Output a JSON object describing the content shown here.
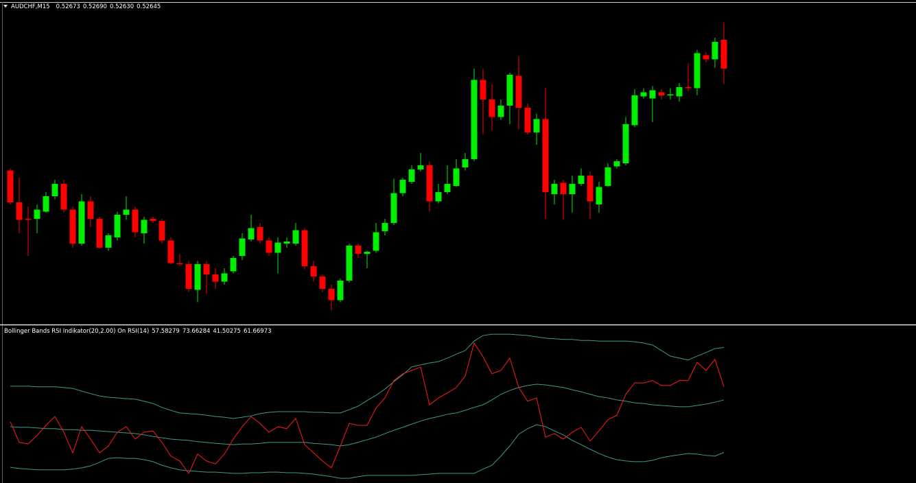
{
  "chart_data": [
    {
      "type": "candlestick",
      "title": "AUDCHF,M15",
      "ohlc_labels": [
        "0.52673",
        "0.52690",
        "0.52630",
        "0.52645"
      ],
      "up_color": "#00ee00",
      "down_color": "#ff0000",
      "ylim": [
        0.52397,
        0.52709
      ],
      "open": [
        0.52546,
        0.52515,
        0.52499,
        0.52499,
        0.52506,
        0.52521,
        0.52533,
        0.52508,
        0.52475,
        0.52516,
        0.52499,
        0.52471,
        0.52481,
        0.52503,
        0.52508,
        0.52485,
        0.52499,
        0.52497,
        0.52478,
        0.52456,
        0.52455,
        0.5243,
        0.52455,
        0.52445,
        0.52438,
        0.52448,
        0.52463,
        0.52479,
        0.52491,
        0.52478,
        0.52466,
        0.52475,
        0.52475,
        0.52488,
        0.52453,
        0.52443,
        0.52431,
        0.5242,
        0.52439,
        0.52473,
        0.52465,
        0.52468,
        0.52487,
        0.52495,
        0.52524,
        0.52535,
        0.52547,
        0.52551,
        0.52516,
        0.52525,
        0.52531,
        0.52549,
        0.52557,
        0.52634,
        0.52615,
        0.52598,
        0.52609,
        0.52638,
        0.52607,
        0.52583,
        0.52596,
        0.52523,
        0.52534,
        0.52523,
        0.52533,
        0.52541,
        0.52513,
        0.52531,
        0.5255,
        0.52553,
        0.5259,
        0.52618,
        0.52616,
        0.52622,
        0.52619,
        0.52618,
        0.52627,
        0.52626,
        0.52658,
        0.52654,
        0.52673
      ],
      "high": [
        0.52548,
        0.52539,
        0.52511,
        0.52513,
        0.52525,
        0.52537,
        0.52537,
        0.52511,
        0.52523,
        0.52521,
        0.52501,
        0.52485,
        0.52506,
        0.52521,
        0.52511,
        0.52501,
        0.52501,
        0.52499,
        0.52481,
        0.52465,
        0.52458,
        0.52458,
        0.52458,
        0.52451,
        0.52451,
        0.52463,
        0.52485,
        0.52503,
        0.52495,
        0.52481,
        0.52481,
        0.52481,
        0.52495,
        0.5249,
        0.52458,
        0.52445,
        0.52435,
        0.52441,
        0.52475,
        0.52475,
        0.52468,
        0.52495,
        0.52499,
        0.52538,
        0.52539,
        0.52551,
        0.52563,
        0.52555,
        0.52533,
        0.52551,
        0.52557,
        0.52563,
        0.52645,
        0.52645,
        0.5263,
        0.52615,
        0.52641,
        0.52657,
        0.52611,
        0.52601,
        0.52626,
        0.52537,
        0.52537,
        0.52541,
        0.52548,
        0.52545,
        0.52535,
        0.52553,
        0.52557,
        0.52598,
        0.52625,
        0.52626,
        0.52628,
        0.52625,
        0.52626,
        0.52631,
        0.5265,
        0.52663,
        0.52661,
        0.52675,
        0.5269
      ],
      "low": [
        0.52513,
        0.52485,
        0.52463,
        0.52485,
        0.52505,
        0.52518,
        0.52505,
        0.52471,
        0.52473,
        0.52491,
        0.5247,
        0.52468,
        0.52478,
        0.52498,
        0.52481,
        0.52475,
        0.52495,
        0.52475,
        0.52455,
        0.52453,
        0.52428,
        0.52418,
        0.52426,
        0.52431,
        0.52435,
        0.52446,
        0.52459,
        0.52477,
        0.52475,
        0.52463,
        0.52446,
        0.52471,
        0.52473,
        0.5245,
        0.52438,
        0.52428,
        0.5241,
        0.52418,
        0.52437,
        0.52461,
        0.52451,
        0.52466,
        0.52483,
        0.52493,
        0.52521,
        0.52533,
        0.52545,
        0.52506,
        0.52514,
        0.52523,
        0.5253,
        0.52546,
        0.52555,
        0.52581,
        0.52585,
        0.52595,
        0.52591,
        0.52586,
        0.52581,
        0.52571,
        0.52499,
        0.52513,
        0.52498,
        0.52505,
        0.52531,
        0.52499,
        0.52505,
        0.5253,
        0.52548,
        0.52551,
        0.52588,
        0.52616,
        0.52593,
        0.52615,
        0.52615,
        0.52613,
        0.52623,
        0.52619,
        0.52651,
        0.52646,
        0.5263
      ],
      "close": [
        0.52515,
        0.52498,
        0.52498,
        0.52508,
        0.52521,
        0.52533,
        0.52508,
        0.52475,
        0.52516,
        0.52499,
        0.52471,
        0.52483,
        0.52503,
        0.52508,
        0.52486,
        0.52498,
        0.52497,
        0.52478,
        0.52456,
        0.52455,
        0.52431,
        0.52455,
        0.52445,
        0.52438,
        0.52446,
        0.52461,
        0.5248,
        0.5249,
        0.52478,
        0.52466,
        0.52476,
        0.52477,
        0.52488,
        0.52453,
        0.52443,
        0.52431,
        0.5242,
        0.52439,
        0.52473,
        0.52465,
        0.52467,
        0.52486,
        0.52495,
        0.52524,
        0.52537,
        0.52547,
        0.52551,
        0.52516,
        0.52525,
        0.52533,
        0.52548,
        0.52557,
        0.52634,
        0.52615,
        0.52598,
        0.52609,
        0.52639,
        0.52607,
        0.52583,
        0.52596,
        0.52525,
        0.52533,
        0.52523,
        0.52533,
        0.52541,
        0.52516,
        0.5253,
        0.52549,
        0.52555,
        0.52591,
        0.52619,
        0.52622,
        0.52624,
        0.52619,
        0.5262,
        0.52627,
        0.52626,
        0.5266,
        0.52654,
        0.52671,
        0.52645
      ]
    },
    {
      "type": "line",
      "title": "Bollinger Bands RSI Indikator(20,2.00) On RSI(14)",
      "ylim": [
        32.16,
        80.04
      ],
      "series": [
        {
          "color": "#3c9c82",
          "values": [
            49.4,
            49.2,
            49.2,
            49.0,
            48.8,
            48.8,
            48.5,
            48.5,
            48.3,
            48.3,
            48.1,
            47.9,
            47.7,
            47.5,
            47.3,
            46.9,
            46.4,
            46.0,
            45.6,
            45.4,
            45.2,
            44.8,
            44.6,
            44.3,
            44.1,
            43.9,
            44.1,
            44.1,
            44.3,
            44.6,
            44.6,
            44.6,
            44.6,
            44.6,
            44.3,
            44.1,
            43.9,
            43.5,
            43.9,
            44.6,
            45.4,
            46.2,
            47.3,
            48.3,
            49.2,
            50.2,
            51.1,
            51.9,
            52.5,
            53.2,
            53.6,
            54.4,
            55.3,
            56.1,
            57.6,
            59.3,
            60.5,
            61.4,
            62.0,
            62.4,
            62.2,
            61.8,
            61.4,
            60.7,
            60.1,
            59.3,
            58.6,
            58.2,
            57.6,
            57.2,
            56.7,
            56.5,
            56.1,
            55.9,
            55.7,
            55.5,
            55.5,
            55.9,
            56.3,
            56.9,
            57.58279
          ]
        },
        {
          "color": "#3c9c82",
          "values": [
            61.8,
            61.8,
            61.8,
            61.6,
            61.6,
            61.6,
            61.4,
            61.1,
            60.3,
            59.5,
            58.8,
            58.4,
            58.2,
            58.0,
            57.8,
            57.2,
            56.5,
            55.3,
            54.4,
            53.6,
            53.4,
            53.2,
            52.9,
            52.5,
            52.3,
            51.9,
            52.3,
            52.7,
            53.4,
            53.8,
            54.0,
            54.0,
            54.0,
            54.0,
            53.8,
            53.8,
            53.6,
            53.6,
            54.6,
            55.7,
            57.4,
            59.0,
            60.9,
            63.2,
            65.3,
            67.7,
            68.3,
            68.9,
            69.3,
            70.4,
            71.6,
            72.7,
            75.6,
            77.3,
            77.7,
            77.7,
            77.7,
            77.5,
            77.3,
            76.9,
            76.5,
            76.3,
            76.1,
            76.1,
            75.8,
            75.8,
            75.6,
            75.6,
            75.6,
            75.6,
            75.4,
            75.0,
            74.4,
            72.7,
            71.0,
            70.4,
            69.8,
            71.0,
            72.1,
            73.3,
            73.66284
          ]
        },
        {
          "color": "#3c9c82",
          "values": [
            37.0,
            36.6,
            36.4,
            36.2,
            36.2,
            36.2,
            36.2,
            36.4,
            36.8,
            37.4,
            38.5,
            39.7,
            39.9,
            39.7,
            39.7,
            39.3,
            38.7,
            37.6,
            36.8,
            36.2,
            35.9,
            35.7,
            35.5,
            35.5,
            35.3,
            35.1,
            35.1,
            35.3,
            35.3,
            35.5,
            35.5,
            35.3,
            35.3,
            35.1,
            34.9,
            34.5,
            34.1,
            33.6,
            33.6,
            34.1,
            34.5,
            34.5,
            34.5,
            34.5,
            34.5,
            34.5,
            34.7,
            34.9,
            35.1,
            35.1,
            35.1,
            35.1,
            35.1,
            36.4,
            37.6,
            40.4,
            43.5,
            47.1,
            48.8,
            50.0,
            49.4,
            48.1,
            46.9,
            45.2,
            43.9,
            42.5,
            41.2,
            40.1,
            39.3,
            38.9,
            38.7,
            38.7,
            39.1,
            39.9,
            40.4,
            40.8,
            41.2,
            41.0,
            40.6,
            40.4,
            41.50275
          ]
        },
        {
          "color": "#ff1a1a",
          "values": [
            50.9,
            44.6,
            44.1,
            46.7,
            49.8,
            52.5,
            47.7,
            41.4,
            49.4,
            45.6,
            41.4,
            43.5,
            47.7,
            49.4,
            45.6,
            47.7,
            48.1,
            44.6,
            40.4,
            38.9,
            35.1,
            41.0,
            38.9,
            38.0,
            41.0,
            45.6,
            49.4,
            52.5,
            50.4,
            47.7,
            49.4,
            48.8,
            51.9,
            43.9,
            41.4,
            38.9,
            36.8,
            43.5,
            50.4,
            49.8,
            49.8,
            55.1,
            58.2,
            63.5,
            65.6,
            66.6,
            67.7,
            56.1,
            58.2,
            59.7,
            61.4,
            64.9,
            75.0,
            70.8,
            65.6,
            66.6,
            70.4,
            61.4,
            57.2,
            58.2,
            46.2,
            47.3,
            45.6,
            47.7,
            49.2,
            45.0,
            48.1,
            51.5,
            52.9,
            59.3,
            62.8,
            62.8,
            63.5,
            62.0,
            62.0,
            63.5,
            63.5,
            69.1,
            66.6,
            70.0,
            61.66973
          ]
        }
      ]
    }
  ]
}
